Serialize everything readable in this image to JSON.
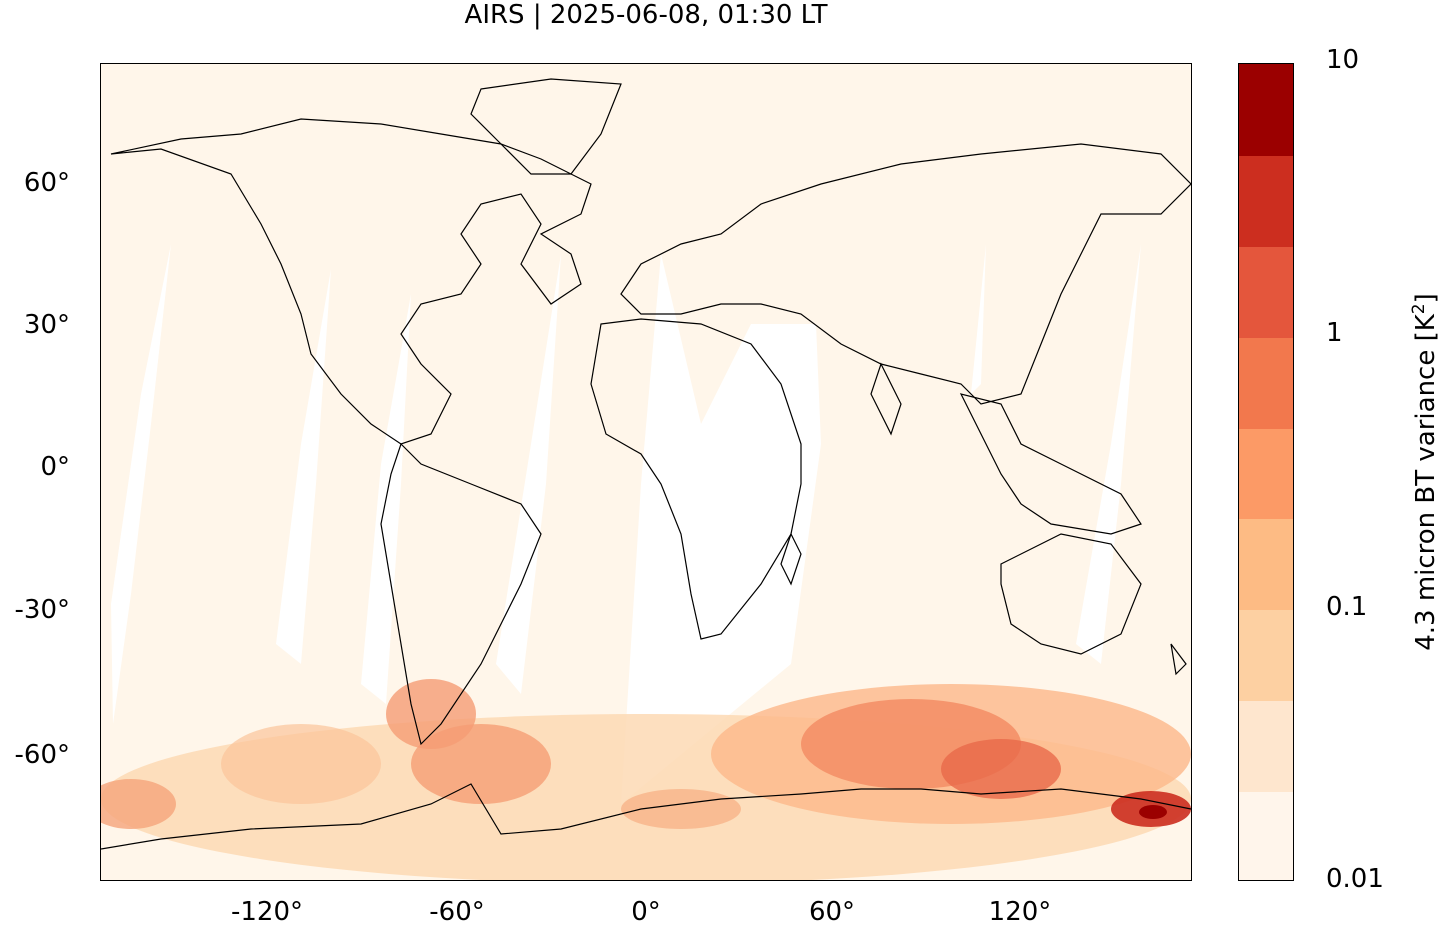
{
  "title": "AIRS | 2025-06-08, 01:30 LT",
  "map": {
    "x_ticks": [
      "-120°",
      "-60°",
      "0°",
      "60°",
      "120°"
    ],
    "y_ticks": [
      "60°",
      "30°",
      "0°",
      "-30°",
      "-60°"
    ],
    "x_range": [
      -180,
      180
    ],
    "y_range": [
      -85,
      85
    ],
    "background_color": "#fff6ea",
    "high_variance_color": "#e04030"
  },
  "colorbar": {
    "label_main": "4.3 micron BT variance [K",
    "label_sup": "2",
    "label_end": "]",
    "scale": "log",
    "ticks": [
      "10",
      "1",
      "0.1",
      "0.01"
    ],
    "colors": [
      "#fff5eb",
      "#fee6ce",
      "#fdd0a2",
      "#fdbb84",
      "#fc9a66",
      "#f2784d",
      "#e4563c",
      "#cc2e1f",
      "#9b0000"
    ]
  }
}
